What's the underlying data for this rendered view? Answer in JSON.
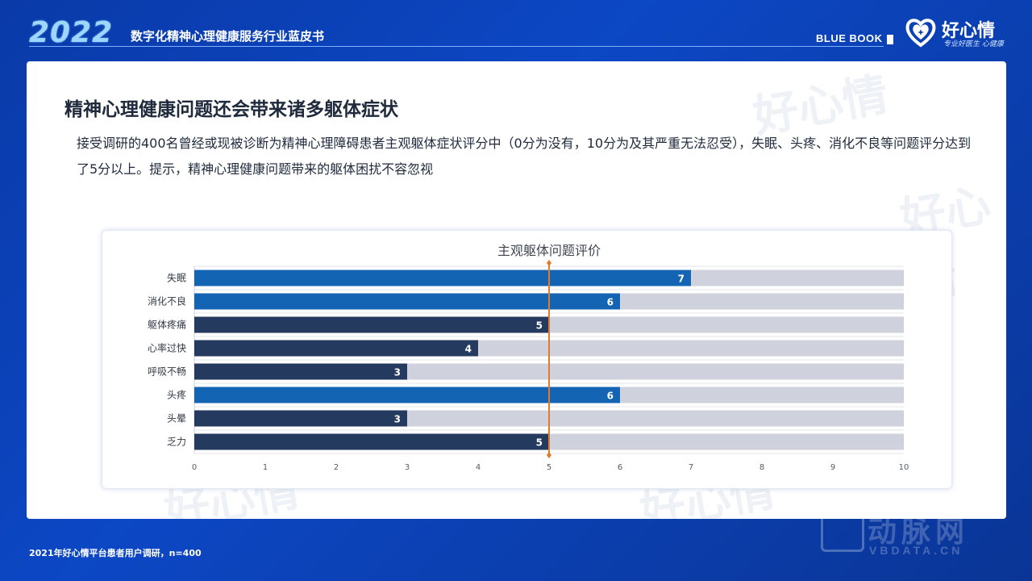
{
  "header": {
    "year": "2022",
    "title": "数字化精神心理健康服务行业蓝皮书",
    "badge": "BLUE BOOK",
    "logo_text": "好心情",
    "logo_sub": "专业好医生 心健康"
  },
  "card": {
    "title": "精神心理健康问题还会带来诸多躯体症状",
    "description": "接受调研的400名曾经或现被诊断为精神心理障碍患者主观躯体症状评分中（0分为没有，10分为及其严重无法忍受），失眠、头疼、消化不良等问题评分达到了5分以上。提示，精神心理健康问题带来的躯体困扰不容忽视"
  },
  "footer": {
    "source": "2021年好心情平台患者用户调研，n=400"
  },
  "watermark": {
    "brand": "动脉网",
    "url": "VBDATA.CN"
  },
  "colors": {
    "bar_high": "#1464b4",
    "bar_low": "#243a5e",
    "track": "#cfd2dd",
    "ref_line": "#e07b2a"
  },
  "chart_data": {
    "type": "bar",
    "orientation": "horizontal",
    "title": "主观躯体问题评价",
    "categories": [
      "失眠",
      "消化不良",
      "躯体疼痛",
      "心率过快",
      "呼吸不畅",
      "头疼",
      "头晕",
      "乏力"
    ],
    "values": [
      7,
      6,
      5,
      4,
      3,
      6,
      3,
      5
    ],
    "xlim": [
      0,
      10
    ],
    "xticks": [
      0,
      1,
      2,
      3,
      4,
      5,
      6,
      7,
      8,
      9,
      10
    ],
    "reference_line": 5,
    "grid": true,
    "legend": "none"
  }
}
